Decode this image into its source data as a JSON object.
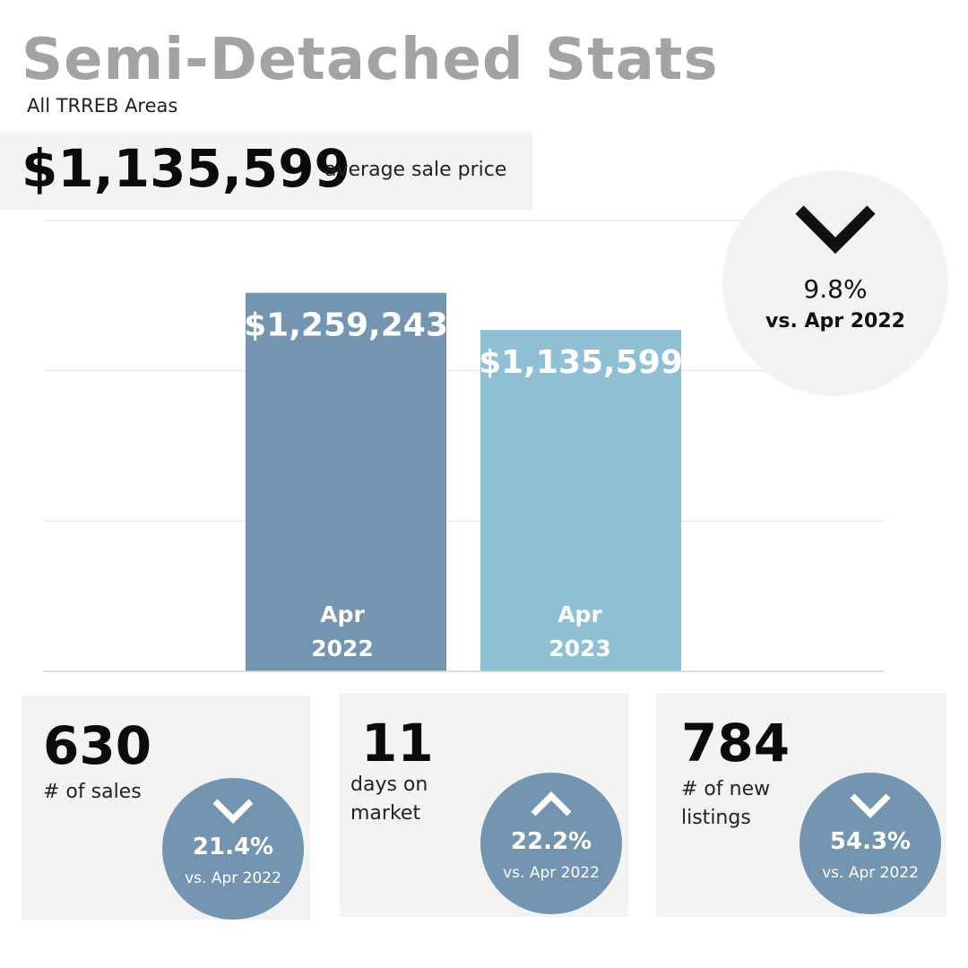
{
  "header": {
    "title": "Semi-Detached Stats",
    "subtitle": "All TRREB Areas"
  },
  "summary": {
    "value": "$1,135,599",
    "label": "average sale price"
  },
  "change": {
    "direction": "down",
    "icon": "chevron-down-icon",
    "percent": "9.8%",
    "comparison": "vs. Apr 2022"
  },
  "chart_data": {
    "type": "bar",
    "categories": [
      "Apr 2022",
      "Apr 2023"
    ],
    "category_lines": [
      [
        "Apr",
        "2022"
      ],
      [
        "Apr",
        "2023"
      ]
    ],
    "values": [
      1259243,
      1135599
    ],
    "value_labels": [
      "$1,259,243",
      "$1,135,599"
    ],
    "colors": [
      "#7495b2",
      "#8fc0d4"
    ],
    "grid": true,
    "title": "",
    "xlabel": "",
    "ylabel": ""
  },
  "stats": [
    {
      "value": "630",
      "label": "# of sales",
      "direction": "down",
      "icon": "chevron-down-icon",
      "percent": "21.4%",
      "comparison": "vs. Apr 2022"
    },
    {
      "value": "11",
      "label": "days on market",
      "direction": "up",
      "icon": "chevron-up-icon",
      "percent": "22.2%",
      "comparison": "vs. Apr 2022"
    },
    {
      "value": "784",
      "label": "# of new listings",
      "direction": "down",
      "icon": "chevron-down-icon",
      "percent": "54.3%",
      "comparison": "vs. Apr 2022"
    }
  ],
  "colors": {
    "title_gray": "#a3a3a3",
    "panel_gray": "#f3f3f4",
    "bar_2022": "#7495b2",
    "bar_2023": "#8fc0d4",
    "circle_blue": "#7495b2"
  }
}
